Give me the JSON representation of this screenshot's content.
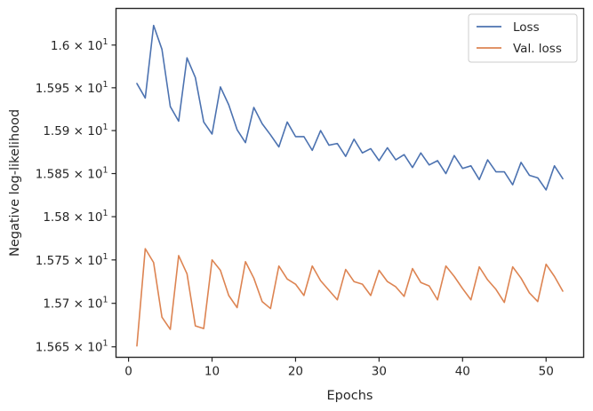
{
  "chart_data": {
    "type": "line",
    "xlabel": "Epochs",
    "ylabel": "Negative log-likelihood",
    "xlim": [
      -1.5,
      54.5
    ],
    "ylim": [
      15.638,
      16.043
    ],
    "y_scale": "log",
    "grid": false,
    "legend_position": "upper right",
    "x_ticks": [
      0,
      10,
      20,
      30,
      40,
      50
    ],
    "x_tick_labels": [
      "0",
      "10",
      "20",
      "30",
      "40",
      "50"
    ],
    "y_ticks": [
      15.65,
      15.7,
      15.75,
      15.8,
      15.85,
      15.9,
      15.95,
      16.0
    ],
    "y_tick_labels": [
      {
        "mantissa": "1.565",
        "exponent": "1"
      },
      {
        "mantissa": "1.57",
        "exponent": "1"
      },
      {
        "mantissa": "1.575",
        "exponent": "1"
      },
      {
        "mantissa": "1.58",
        "exponent": "1"
      },
      {
        "mantissa": "1.585",
        "exponent": "1"
      },
      {
        "mantissa": "1.59",
        "exponent": "1"
      },
      {
        "mantissa": "1.595",
        "exponent": "1"
      },
      {
        "mantissa": "1.6",
        "exponent": "1"
      }
    ],
    "x": [
      1,
      2,
      3,
      4,
      5,
      6,
      7,
      8,
      9,
      10,
      11,
      12,
      13,
      14,
      15,
      16,
      17,
      18,
      19,
      20,
      21,
      22,
      23,
      24,
      25,
      26,
      27,
      28,
      29,
      30,
      31,
      32,
      33,
      34,
      35,
      36,
      37,
      38,
      39,
      40,
      41,
      42,
      43,
      44,
      45,
      46,
      47,
      48,
      49,
      50,
      51,
      52
    ],
    "series": [
      {
        "name": "Loss",
        "color": "#4c72b0",
        "values": [
          15.955,
          15.938,
          16.023,
          15.995,
          15.928,
          15.911,
          15.985,
          15.962,
          15.91,
          15.896,
          15.951,
          15.93,
          15.901,
          15.886,
          15.927,
          15.908,
          15.895,
          15.881,
          15.91,
          15.893,
          15.893,
          15.877,
          15.9,
          15.883,
          15.885,
          15.87,
          15.89,
          15.874,
          15.879,
          15.865,
          15.88,
          15.866,
          15.872,
          15.857,
          15.874,
          15.86,
          15.865,
          15.85,
          15.871,
          15.856,
          15.859,
          15.843,
          15.866,
          15.852,
          15.852,
          15.837,
          15.863,
          15.848,
          15.845,
          15.831,
          15.859,
          15.844
        ]
      },
      {
        "name": "Val. loss",
        "color": "#dd8452",
        "values": [
          15.651,
          15.763,
          15.747,
          15.684,
          15.67,
          15.755,
          15.734,
          15.674,
          15.671,
          15.75,
          15.738,
          15.709,
          15.695,
          15.748,
          15.729,
          15.702,
          15.694,
          15.743,
          15.728,
          15.722,
          15.709,
          15.743,
          15.726,
          15.715,
          15.704,
          15.739,
          15.725,
          15.722,
          15.709,
          15.738,
          15.725,
          15.719,
          15.708,
          15.74,
          15.724,
          15.72,
          15.704,
          15.743,
          15.731,
          15.717,
          15.704,
          15.742,
          15.727,
          15.716,
          15.701,
          15.742,
          15.729,
          15.712,
          15.702,
          15.745,
          15.731,
          15.714
        ]
      }
    ]
  }
}
